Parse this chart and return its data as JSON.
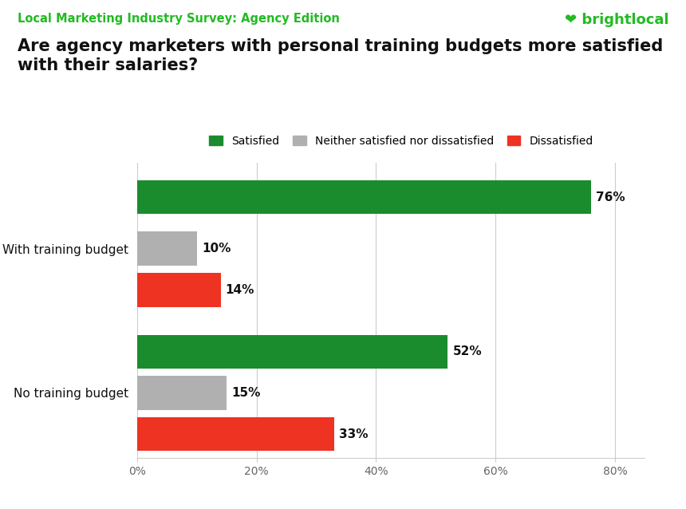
{
  "supertitle": "Local Marketing Industry Survey: Agency Edition",
  "title": "Are agency marketers with personal training budgets more satisfied\nwith their salaries?",
  "categories": [
    "With training budget",
    "No training budget"
  ],
  "series": [
    {
      "label": "Satisfied",
      "color": "#1a8c2e",
      "values": [
        76,
        52
      ]
    },
    {
      "label": "Neither satisfied nor dissatisfied",
      "color": "#b0b0b0",
      "values": [
        10,
        15
      ]
    },
    {
      "label": "Dissatisfied",
      "color": "#ee3322",
      "values": [
        14,
        33
      ]
    }
  ],
  "xlim": [
    0,
    85
  ],
  "xticks": [
    0,
    20,
    40,
    60,
    80
  ],
  "xtick_labels": [
    "0%",
    "20%",
    "40%",
    "60%",
    "80%"
  ],
  "bar_height": 0.18,
  "supertitle_color": "#22bb22",
  "title_color": "#111111",
  "label_color": "#111111",
  "bg_color": "#ffffff",
  "grid_color": "#cccccc",
  "brightlocal_color": "#22bb22"
}
